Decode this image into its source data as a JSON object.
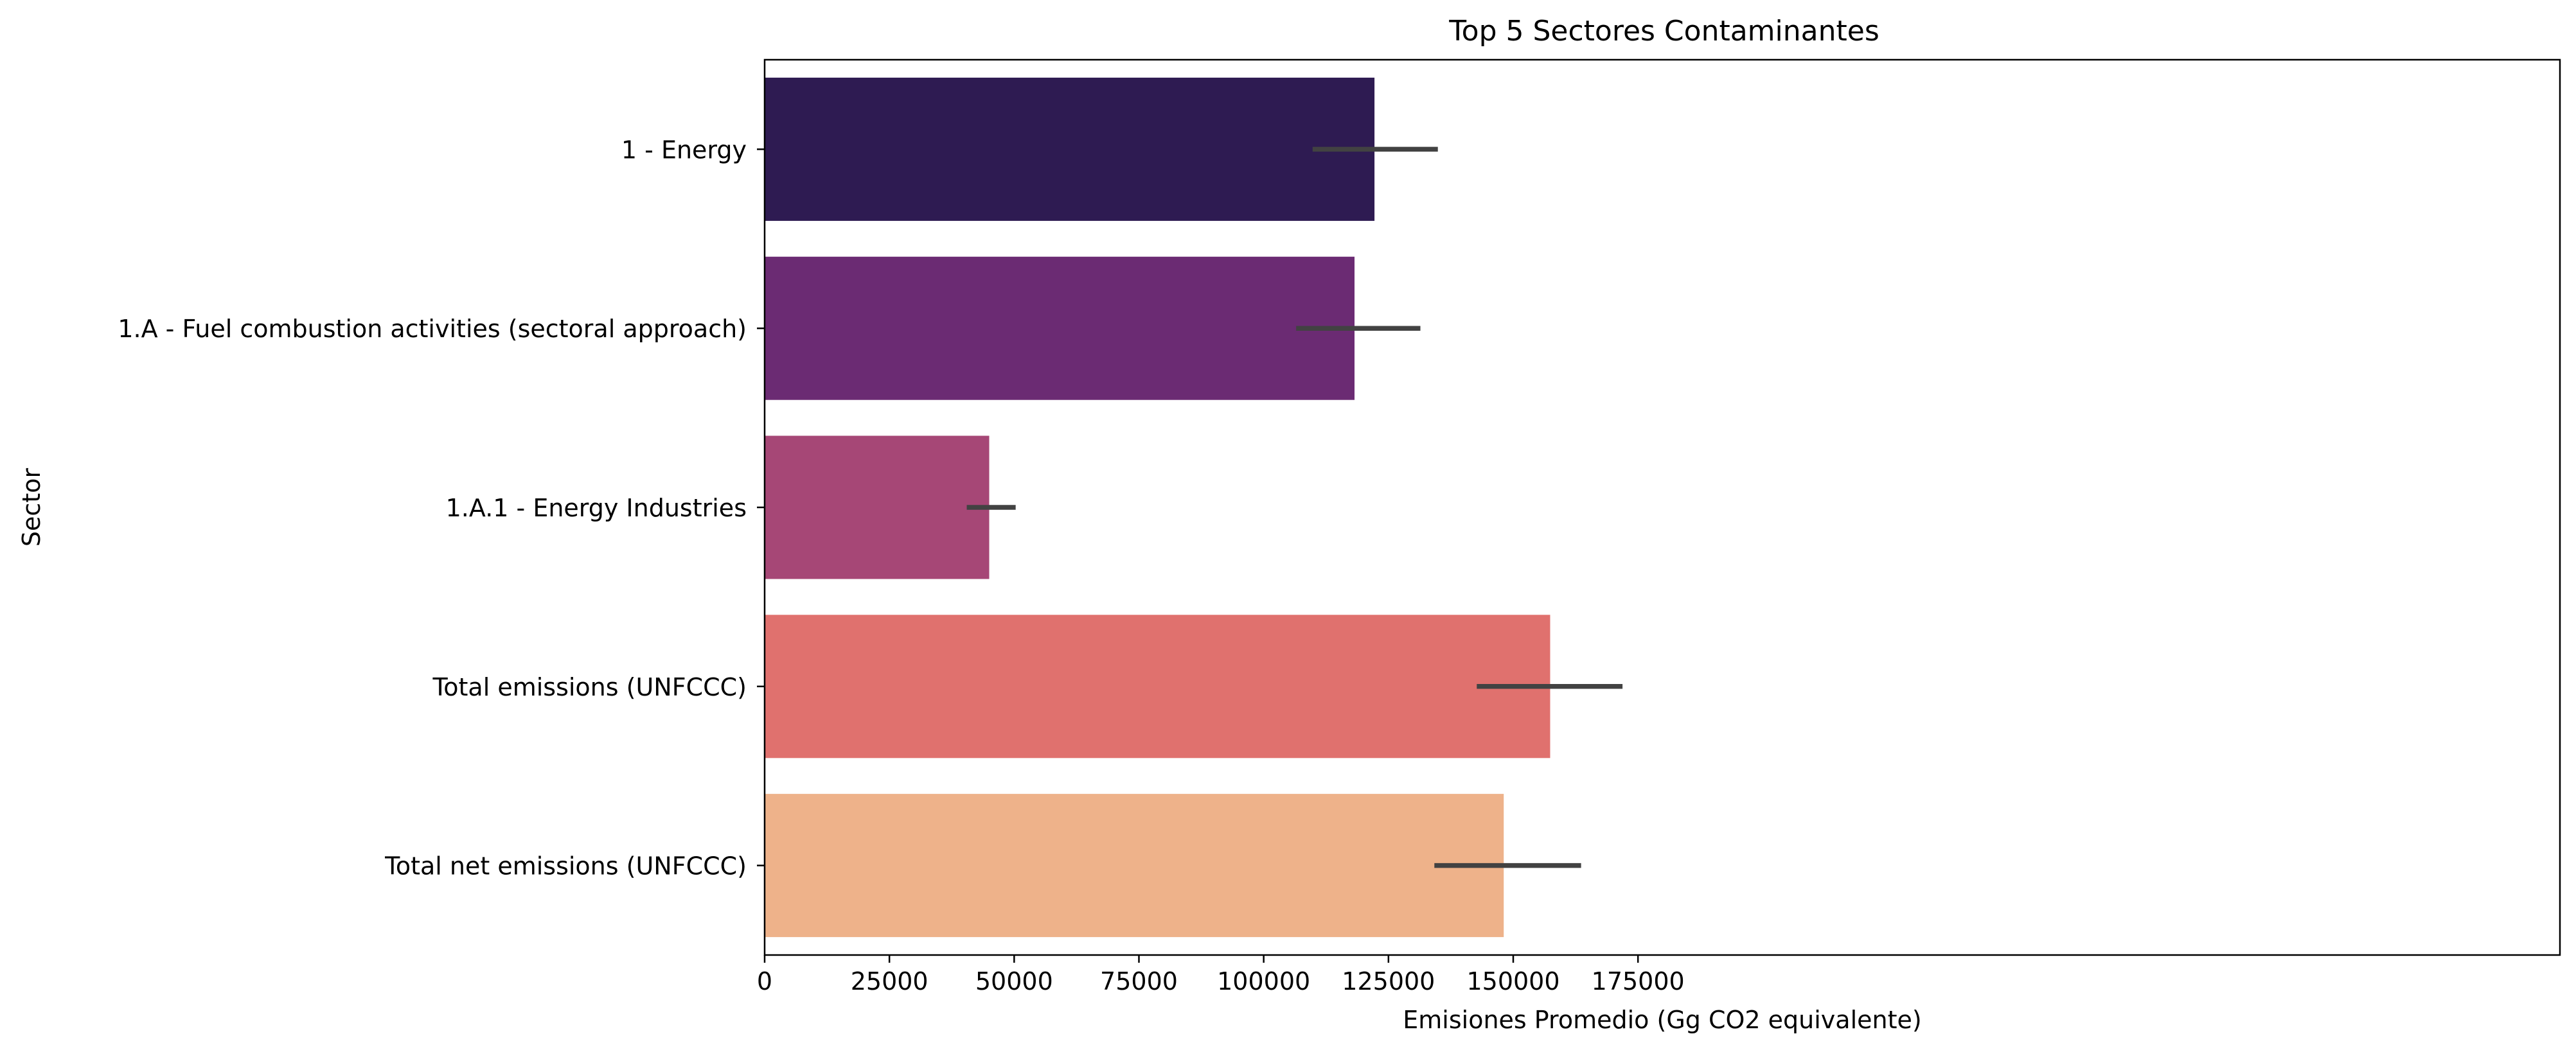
{
  "chart_data": {
    "type": "bar",
    "orientation": "horizontal",
    "title": "Top 5 Sectores Contaminantes",
    "xlabel": "Emisiones Promedio (Gg CO2 equivalente)",
    "ylabel": "Sector",
    "xlim": [
      0,
      180000
    ],
    "xticks": [
      0,
      25000,
      50000,
      75000,
      100000,
      125000,
      150000,
      175000
    ],
    "xtick_labels": [
      "0",
      "25000",
      "50000",
      "75000",
      "100000",
      "125000",
      "150000",
      "175000"
    ],
    "grid": false,
    "legend": "none",
    "categories": [
      "1 - Energy",
      "1.A - Fuel combustion activities (sectoral approach)",
      "1.A.1 - Energy Industries",
      "Total emissions (UNFCCC)",
      "Total net emissions (UNFCCC)"
    ],
    "values": [
      122200,
      118200,
      45000,
      157400,
      148100
    ],
    "error_low": [
      109800,
      106500,
      40500,
      142700,
      134200
    ],
    "error_high": [
      134900,
      131400,
      50300,
      171900,
      163600
    ],
    "colors": [
      "#2e1b52",
      "#6b2b73",
      "#a64776",
      "#e0716e",
      "#eeb28a"
    ],
    "error_color": "#424242"
  }
}
